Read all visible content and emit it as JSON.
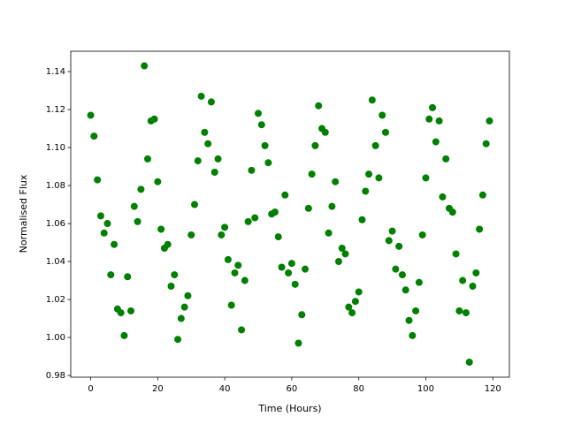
{
  "chart_data": {
    "type": "scatter",
    "xlabel": "Time (Hours)",
    "ylabel": "Normalised Flux",
    "color": "#008000",
    "x": [
      0,
      1,
      2,
      3,
      4,
      5,
      6,
      7,
      8,
      9,
      10,
      11,
      12,
      13,
      14,
      15,
      16,
      17,
      18,
      19,
      20,
      21,
      22,
      23,
      24,
      25,
      26,
      27,
      28,
      29,
      30,
      31,
      32,
      33,
      34,
      35,
      36,
      37,
      38,
      39,
      40,
      41,
      42,
      43,
      44,
      45,
      46,
      47,
      48,
      49,
      50,
      51,
      52,
      53,
      54,
      55,
      56,
      57,
      58,
      59,
      60,
      61,
      62,
      63,
      64,
      65,
      66,
      67,
      68,
      69,
      70,
      71,
      72,
      73,
      74,
      75,
      76,
      77,
      78,
      79,
      80,
      81,
      82,
      83,
      84,
      85,
      86,
      87,
      88,
      89,
      90,
      91,
      92,
      93,
      94,
      95,
      96,
      97,
      98,
      99,
      100,
      101,
      102,
      103,
      104,
      105,
      106,
      107,
      108,
      109,
      110,
      111,
      112,
      113,
      114,
      115,
      116,
      117,
      118,
      119
    ],
    "values": [
      1.117,
      1.106,
      1.083,
      1.064,
      1.055,
      1.06,
      1.033,
      1.049,
      1.015,
      1.013,
      1.001,
      1.032,
      1.014,
      1.069,
      1.061,
      1.078,
      1.143,
      1.094,
      1.114,
      1.115,
      1.082,
      1.057,
      1.047,
      1.049,
      1.027,
      1.033,
      0.999,
      1.01,
      1.016,
      1.022,
      1.054,
      1.07,
      1.093,
      1.127,
      1.108,
      1.102,
      1.124,
      1.087,
      1.094,
      1.054,
      1.058,
      1.041,
      1.017,
      1.034,
      1.038,
      1.004,
      1.03,
      1.061,
      1.088,
      1.063,
      1.118,
      1.112,
      1.101,
      1.092,
      1.065,
      1.066,
      1.053,
      1.037,
      1.075,
      1.034,
      1.039,
      1.028,
      0.997,
      1.012,
      1.036,
      1.068,
      1.086,
      1.101,
      1.122,
      1.11,
      1.108,
      1.055,
      1.069,
      1.082,
      1.04,
      1.047,
      1.044,
      1.016,
      1.013,
      1.019,
      1.024,
      1.062,
      1.077,
      1.086,
      1.125,
      1.101,
      1.084,
      1.117,
      1.108,
      1.051,
      1.056,
      1.036,
      1.048,
      1.033,
      1.025,
      1.009,
      1.001,
      1.014,
      1.029,
      1.054,
      1.084,
      1.115,
      1.121,
      1.103,
      1.114,
      1.074,
      1.094,
      1.068,
      1.066,
      1.044,
      1.014,
      1.03,
      1.013,
      0.987,
      1.027,
      1.034,
      1.057,
      1.075,
      1.102,
      1.114
    ],
    "xlim": [
      -5.95,
      124.95
    ],
    "xticks": [
      0,
      20,
      40,
      60,
      80,
      100,
      120
    ],
    "ylim": [
      0.9791,
      1.1507
    ],
    "yticks": [
      0.98,
      {
        "value": 1,
        "label": "1.00"
      },
      1.02,
      1.04,
      1.06,
      1.08,
      {
        "value": 1.1,
        "label": "1.10"
      },
      1.12,
      1.14
    ]
  }
}
